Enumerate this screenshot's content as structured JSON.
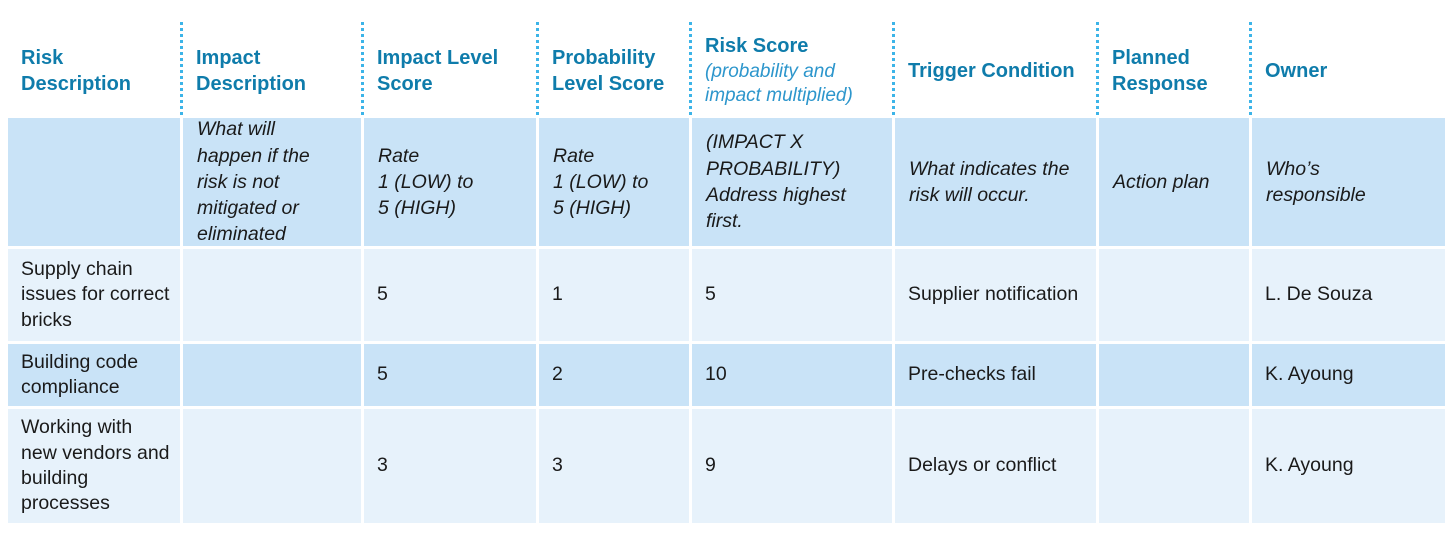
{
  "theme": {
    "header_text_color": "#0f7cab",
    "subtitle_color": "#2d96cc",
    "dotted_line_color": "#3cb4e8",
    "row_dark_bg": "#c9e3f7",
    "row_light_bg": "#e7f2fb",
    "body_text_color": "#1a1a1a",
    "page_bg": "#ffffff"
  },
  "table": {
    "columns": [
      {
        "label": "Risk Description",
        "subtitle": ""
      },
      {
        "label": "Impact Description",
        "subtitle": ""
      },
      {
        "label": "Impact Level Score",
        "subtitle": ""
      },
      {
        "label": "Probability Level Score",
        "subtitle": ""
      },
      {
        "label": "Risk Score",
        "subtitle": "(probability and impact multiplied)"
      },
      {
        "label": "Trigger Condition",
        "subtitle": ""
      },
      {
        "label": "Planned Response",
        "subtitle": ""
      },
      {
        "label": "Owner",
        "subtitle": ""
      }
    ],
    "description_row": [
      "",
      "What will\nhappen if the\nrisk is not\nmitigated or\neliminated",
      "Rate\n1 (LOW) to\n5 (HIGH)",
      "Rate\n1 (LOW) to\n5 (HIGH)",
      "(IMPACT X\nPROBABILITY)\nAddress highest\nfirst.",
      "What indicates the\nrisk will occur.",
      "Action plan",
      "Who’s\nresponsible"
    ],
    "rows": [
      [
        "Supply chain issues for correct bricks",
        "",
        "5",
        "1",
        "5",
        "Supplier notification",
        "",
        "L. De Souza"
      ],
      [
        "Building code compliance",
        "",
        "5",
        "2",
        "10",
        "Pre-checks fail",
        "",
        "K. Ayoung"
      ],
      [
        "Working with new vendors and building processes",
        "",
        "3",
        "3",
        "9",
        "Delays or conflict",
        "",
        "K. Ayoung"
      ]
    ]
  }
}
